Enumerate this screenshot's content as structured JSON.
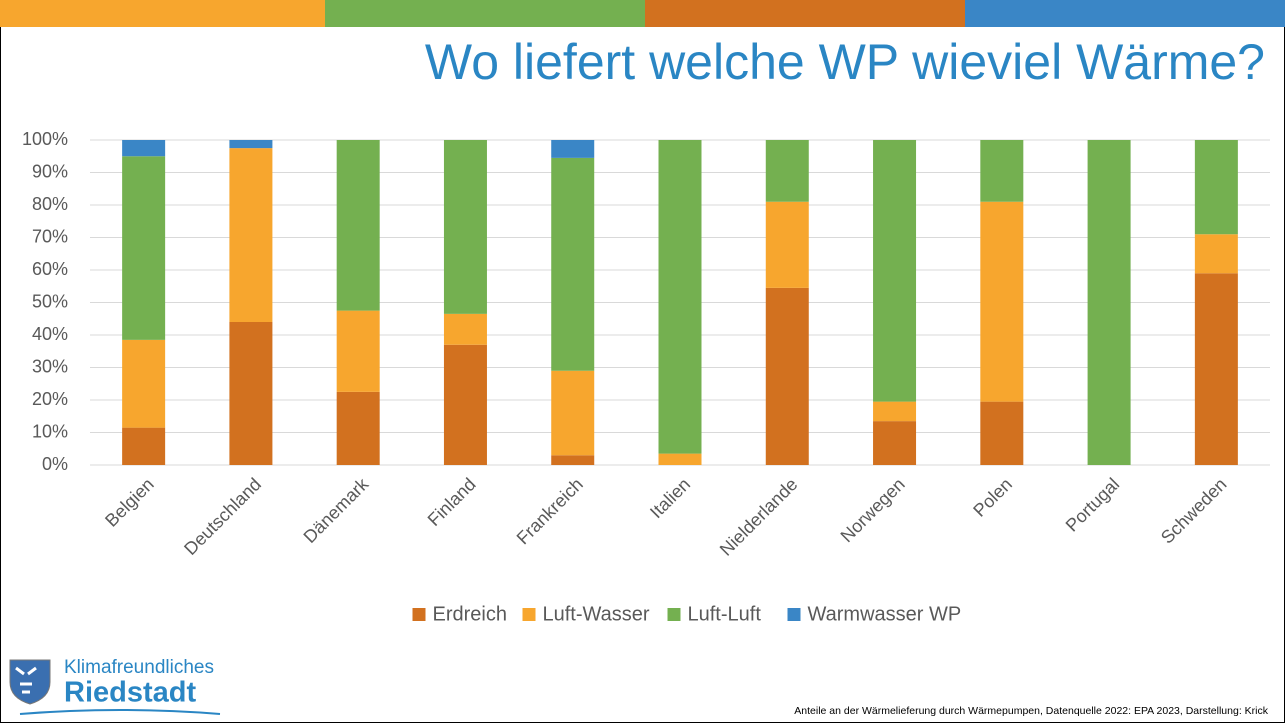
{
  "chart_data": {
    "type": "stacked_bar",
    "title": "Wo liefert welche WP wieviel Wärme?",
    "categories": [
      "Belgien",
      "Deutschland",
      "Dänemark",
      "Finland",
      "Frankreich",
      "Italien",
      "Nielderlande",
      "Norwegen",
      "Polen",
      "Portugal",
      "Schweden"
    ],
    "series": [
      {
        "name": "Erdreich",
        "color": "#d2711f",
        "values": [
          11.5,
          44,
          22.5,
          37,
          3,
          0,
          54.5,
          13.5,
          19.5,
          0,
          59
        ]
      },
      {
        "name": "Luft-Wasser",
        "color": "#f7a62e",
        "values": [
          27,
          53.5,
          25,
          9.5,
          26,
          3.5,
          26.5,
          6,
          61.5,
          0,
          12
        ]
      },
      {
        "name": "Luft-Luft",
        "color": "#74b050",
        "values": [
          56.5,
          0,
          52.5,
          53.5,
          65.5,
          96.5,
          19,
          80.5,
          19,
          100,
          29
        ]
      },
      {
        "name": "Warmwasser WP",
        "color": "#3a86c6",
        "values": [
          5,
          2.5,
          0,
          0,
          5.5,
          0,
          0,
          0,
          0,
          0,
          0
        ]
      }
    ],
    "ylim": [
      0,
      100
    ],
    "yticks": [
      {
        "value": 0,
        "label": "0%"
      },
      {
        "value": 10,
        "label": "10%"
      },
      {
        "value": 20,
        "label": "20%"
      },
      {
        "value": 30,
        "label": "30%"
      },
      {
        "value": 40,
        "label": "40%"
      },
      {
        "value": 50,
        "label": "50%"
      },
      {
        "value": 60,
        "label": "60%"
      },
      {
        "value": 70,
        "label": "70%"
      },
      {
        "value": 80,
        "label": "80%"
      },
      {
        "value": 90,
        "label": "90%"
      },
      {
        "value": 100,
        "label": "100%"
      }
    ],
    "grid": true,
    "legend": "bottom"
  },
  "logo": {
    "line1": "Klimafreundliches",
    "line2": "Riedstadt"
  },
  "footer": "Anteile an der Wärmelieferung durch Wärmepumpen, Datenquelle 2022: EPA 2023, Darstellung: Krick"
}
